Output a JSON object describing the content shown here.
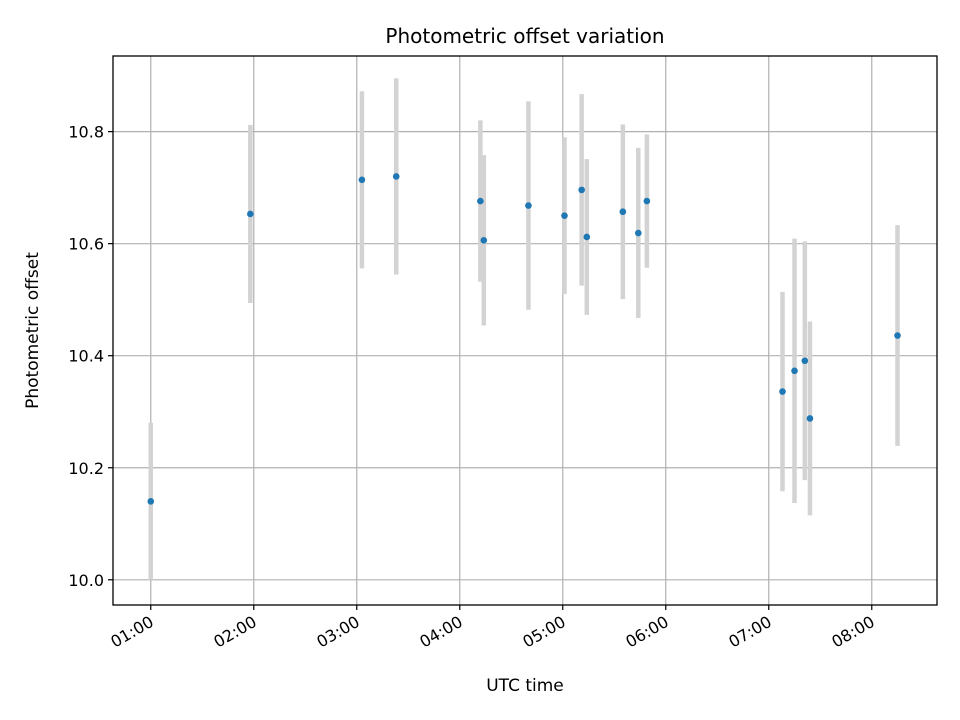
{
  "chart_data": {
    "type": "scatter",
    "title": "Photometric offset variation",
    "xlabel": "UTC time",
    "ylabel": "Photometric offset",
    "x_ticks": [
      "01:00",
      "02:00",
      "03:00",
      "04:00",
      "05:00",
      "06:00",
      "07:00",
      "08:00"
    ],
    "y_ticks": [
      "10.0",
      "10.2",
      "10.4",
      "10.6",
      "10.8"
    ],
    "x_tick_values": [
      "01:00",
      "02:00",
      "03:00",
      "04:00",
      "05:00",
      "06:00",
      "07:00",
      "08:00"
    ],
    "y_tick_values": [
      10.0,
      10.2,
      10.4,
      10.6,
      10.8
    ],
    "xlim": [
      "00:38",
      "08:38"
    ],
    "ylim": [
      9.955,
      10.935
    ],
    "grid": true,
    "point_color": "#1f77b4",
    "errorbar_color": "#d3d3d3",
    "points": [
      {
        "x": "01:00",
        "y": 10.14,
        "yerr": 0.14
      },
      {
        "x": "01:58",
        "y": 10.653,
        "yerr": 0.159
      },
      {
        "x": "03:03",
        "y": 10.714,
        "yerr": 0.158
      },
      {
        "x": "03:23",
        "y": 10.72,
        "yerr": 0.175
      },
      {
        "x": "04:12",
        "y": 10.676,
        "yerr": 0.144
      },
      {
        "x": "04:14",
        "y": 10.606,
        "yerr": 0.152
      },
      {
        "x": "04:40",
        "y": 10.668,
        "yerr": 0.186
      },
      {
        "x": "05:01",
        "y": 10.65,
        "yerr": 0.14
      },
      {
        "x": "05:11",
        "y": 10.696,
        "yerr": 0.171
      },
      {
        "x": "05:14",
        "y": 10.612,
        "yerr": 0.139
      },
      {
        "x": "05:35",
        "y": 10.657,
        "yerr": 0.156
      },
      {
        "x": "05:44",
        "y": 10.619,
        "yerr": 0.152
      },
      {
        "x": "05:49",
        "y": 10.676,
        "yerr": 0.119
      },
      {
        "x": "07:08",
        "y": 10.336,
        "yerr": 0.178
      },
      {
        "x": "07:15",
        "y": 10.373,
        "yerr": 0.236
      },
      {
        "x": "07:21",
        "y": 10.391,
        "yerr": 0.213
      },
      {
        "x": "07:24",
        "y": 10.288,
        "yerr": 0.173
      },
      {
        "x": "08:15",
        "y": 10.436,
        "yerr": 0.197
      }
    ]
  }
}
